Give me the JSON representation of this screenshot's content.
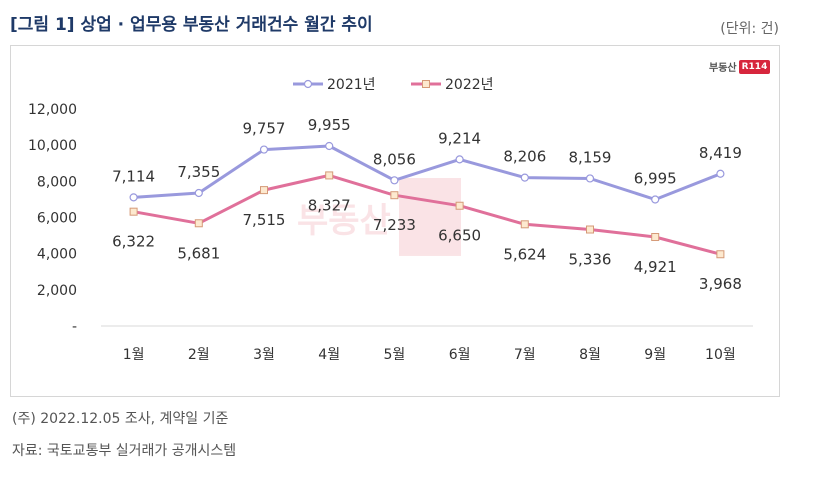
{
  "header": {
    "title": "[그림 1] 상업 · 업무용 부동산 거래건수 월간 추이",
    "unit": "(단위: 건)"
  },
  "logo": {
    "text": "부동산",
    "mark": "R114"
  },
  "watermark": {
    "text": "부동산"
  },
  "notes": {
    "note": "(주) 2022.12.05 조사, 계약일 기준",
    "source": "자료: 국토교통부 실거래가 공개시스템"
  },
  "colors": {
    "series2021": "#9999dd",
    "series2022": "#e0709a",
    "marker2022_fill": "#fde9cf",
    "marker2022_stroke": "#d59a78"
  },
  "chart_data": {
    "type": "line",
    "categories": [
      "1월",
      "2월",
      "3월",
      "4월",
      "5월",
      "6월",
      "7월",
      "8월",
      "9월",
      "10월"
    ],
    "series": [
      {
        "name": "2021년",
        "values": [
          7114,
          7355,
          9757,
          9955,
          8056,
          9214,
          8206,
          8159,
          6995,
          8419
        ],
        "labels": [
          "7,114",
          "7,355",
          "9,757",
          "9,955",
          "8,056",
          "9,214",
          "8,206",
          "8,159",
          "6,995",
          "8,419"
        ]
      },
      {
        "name": "2022년",
        "values": [
          6322,
          5681,
          7515,
          8327,
          7233,
          6650,
          5624,
          5336,
          4921,
          3968
        ],
        "labels": [
          "6,322",
          "5,681",
          "7,515",
          "8,327",
          "7,233",
          "6,650",
          "5,624",
          "5,336",
          "4,921",
          "3,968"
        ]
      }
    ],
    "yticks": [
      "-",
      "2,000",
      "4,000",
      "6,000",
      "8,000",
      "10,000",
      "12,000"
    ],
    "ylim": [
      0,
      12000
    ],
    "grid": false,
    "legend": "top"
  }
}
